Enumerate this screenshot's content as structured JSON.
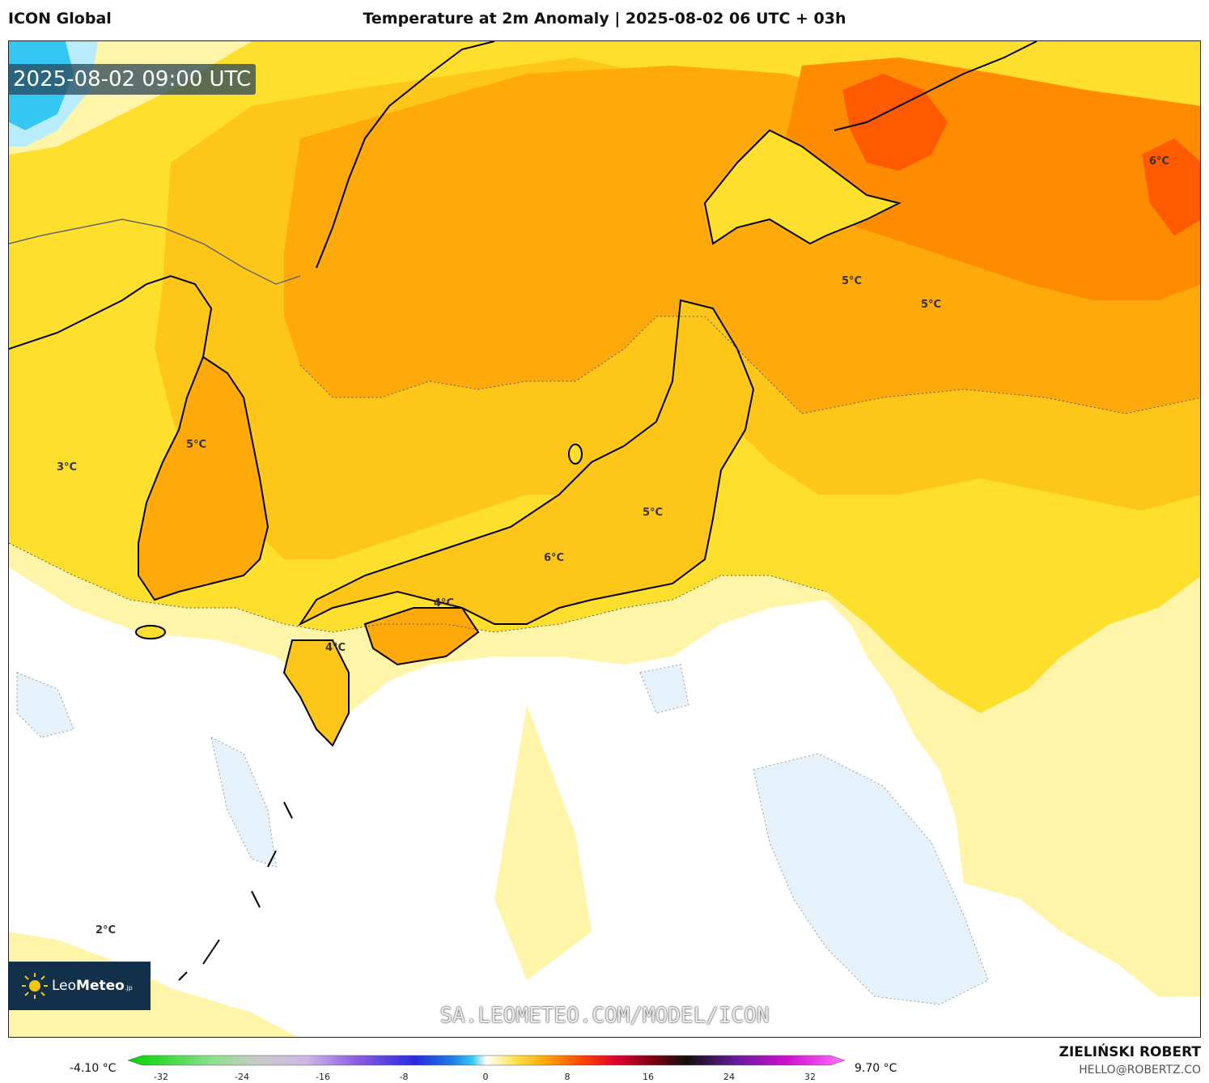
{
  "header": {
    "model": "ICON Global",
    "title": "Temperature at 2m Anomaly | 2025-08-02 06 UTC + 03h"
  },
  "map": {
    "timestamp": "2025-08-02 09:00 UTC",
    "watermark": "SA.LEOMETEO.COM/MODEL/ICON",
    "logo": {
      "name_light": "Leo",
      "name_bold": "Meteo",
      "suffix": ".jp"
    },
    "contour_labels": [
      {
        "text": "6°C"
      },
      {
        "text": "5°C"
      },
      {
        "text": "5°C"
      },
      {
        "text": "5°C"
      },
      {
        "text": "3°C"
      },
      {
        "text": "5°C"
      },
      {
        "text": "6°C"
      },
      {
        "text": "4°C"
      },
      {
        "text": "4°C"
      },
      {
        "text": "2°C"
      }
    ],
    "colors": {
      "white": "#ffffff",
      "pale_blue": "#e6f2fb",
      "cyan": "#33c7f2",
      "pale_yellow": "#fff4a8",
      "yellow": "#ffdf2e",
      "gold": "#ffc61a",
      "amber": "#ffaa0a",
      "orange": "#ff8c00",
      "deep_orange": "#ff5a00",
      "coast": "#000000",
      "border": "#666666"
    }
  },
  "legend": {
    "min": "-4.10 °C",
    "max": "9.70 °C",
    "ticks": [
      "-32",
      "-24",
      "-16",
      "-8",
      "0",
      "8",
      "16",
      "24",
      "32"
    ]
  },
  "credit": {
    "author": "ZIELIŃSKI ROBERT",
    "email": "HELLO@ROBERTZ.CO"
  }
}
